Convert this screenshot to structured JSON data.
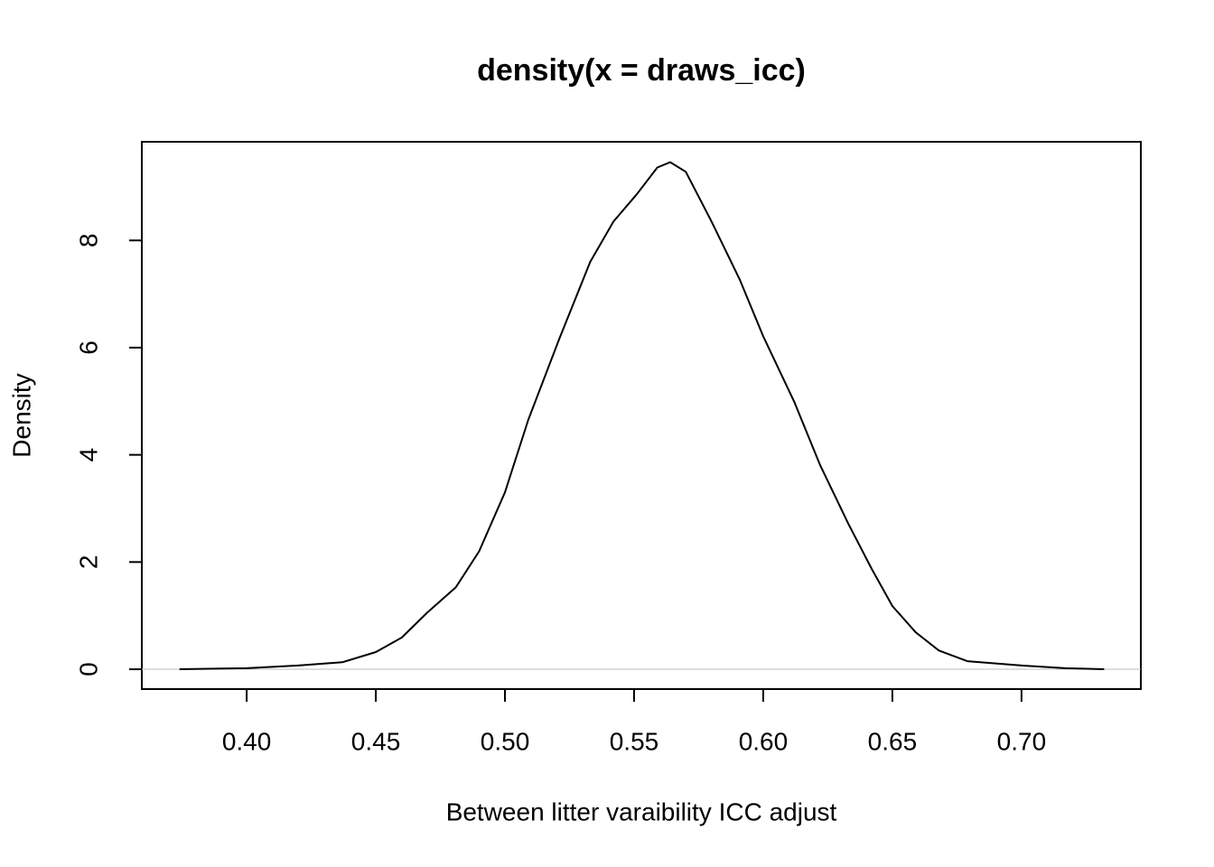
{
  "chart_data": {
    "type": "line",
    "title": "density(x = draws_icc)",
    "x_label": "Between litter varaibility ICC adjust",
    "y_label": "Density",
    "x": [
      0.374,
      0.4,
      0.42,
      0.437,
      0.45,
      0.46,
      0.47,
      0.481,
      0.49,
      0.5,
      0.509,
      0.521,
      0.533,
      0.542,
      0.551,
      0.559,
      0.564,
      0.57,
      0.58,
      0.591,
      0.6,
      0.612,
      0.622,
      0.633,
      0.642,
      0.65,
      0.659,
      0.668,
      0.679,
      0.7,
      0.717,
      0.732
    ],
    "series": [
      {
        "color": "#000000",
        "values": [
          0,
          0.02,
          0.07,
          0.13,
          0.32,
          0.59,
          1.06,
          1.53,
          2.2,
          3.3,
          4.65,
          6.16,
          7.6,
          8.35,
          8.86,
          9.36,
          9.46,
          9.28,
          8.35,
          7.26,
          6.21,
          4.99,
          3.81,
          2.71,
          1.87,
          1.18,
          0.69,
          0.35,
          0.15,
          0.07,
          0.02,
          0
        ]
      }
    ],
    "xlim": [
      0.3594,
      0.7462
    ],
    "ylim": [
      -0.37,
      9.84
    ],
    "xticks": [
      {
        "value": 0.4,
        "label": "0.40"
      },
      {
        "value": 0.45,
        "label": "0.45"
      },
      {
        "value": 0.5,
        "label": "0.50"
      },
      {
        "value": 0.55,
        "label": "0.55"
      },
      {
        "value": 0.6,
        "label": "0.60"
      },
      {
        "value": 0.65,
        "label": "0.65"
      },
      {
        "value": 0.7,
        "label": "0.70"
      }
    ],
    "yticks": [
      0,
      2,
      4,
      6,
      8
    ],
    "zero_line_color": "#bebebe"
  }
}
